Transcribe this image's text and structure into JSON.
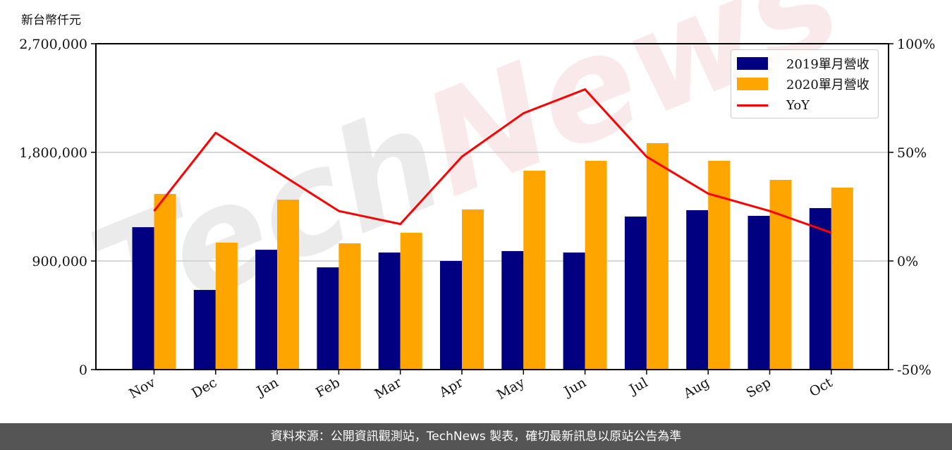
{
  "unit_label": "新台幣仟元",
  "legend": {
    "items": [
      {
        "label": "2019單月營收",
        "color": "#000080",
        "kind": "bar"
      },
      {
        "label": "2020單月營收",
        "color": "#FFA500",
        "kind": "bar"
      },
      {
        "label": "YoY",
        "color": "#FF0000",
        "kind": "line"
      }
    ]
  },
  "footer": {
    "text": "資料來源：公開資訊觀測站，TechNews 製表，確切最新訊息以原站公告為準"
  },
  "watermark": "TechNews",
  "chart_data": {
    "type": "bar",
    "title": "",
    "xlabel": "",
    "ylabel": "新台幣仟元",
    "y2label": "",
    "categories": [
      "Nov",
      "Dec",
      "Jan",
      "Feb",
      "Mar",
      "Apr",
      "May",
      "Jun",
      "Jul",
      "Aug",
      "Sep",
      "Oct"
    ],
    "series": [
      {
        "name": "2019單月營收",
        "type": "bar",
        "axis": "left",
        "color": "#000080",
        "values": [
          1180000,
          660000,
          993000,
          847000,
          970000,
          900000,
          982000,
          970000,
          1268000,
          1321000,
          1274000,
          1338000
        ]
      },
      {
        "name": "2020單月營收",
        "type": "bar",
        "axis": "left",
        "color": "#FFA500",
        "values": [
          1455000,
          1052000,
          1408000,
          1046000,
          1134000,
          1327000,
          1648000,
          1730000,
          1876000,
          1730000,
          1572000,
          1508000
        ]
      },
      {
        "name": "YoY",
        "type": "line",
        "axis": "right",
        "color": "#FF0000",
        "unit": "%",
        "values": [
          23,
          59,
          41,
          23,
          17,
          48,
          68,
          79,
          48,
          31,
          23,
          13
        ]
      }
    ],
    "ylim": [
      0,
      2700000
    ],
    "yticks": [
      0,
      900000,
      1800000,
      2700000
    ],
    "ytick_labels": [
      "0",
      "900,000",
      "1,800,000",
      "2,700,000"
    ],
    "y2lim": [
      -50,
      100
    ],
    "y2ticks": [
      -50,
      0,
      50,
      100
    ],
    "y2tick_labels": [
      "-50%",
      "0%",
      "50%",
      "100%"
    ],
    "grid": "horizontal",
    "legend_position": "upper right"
  }
}
